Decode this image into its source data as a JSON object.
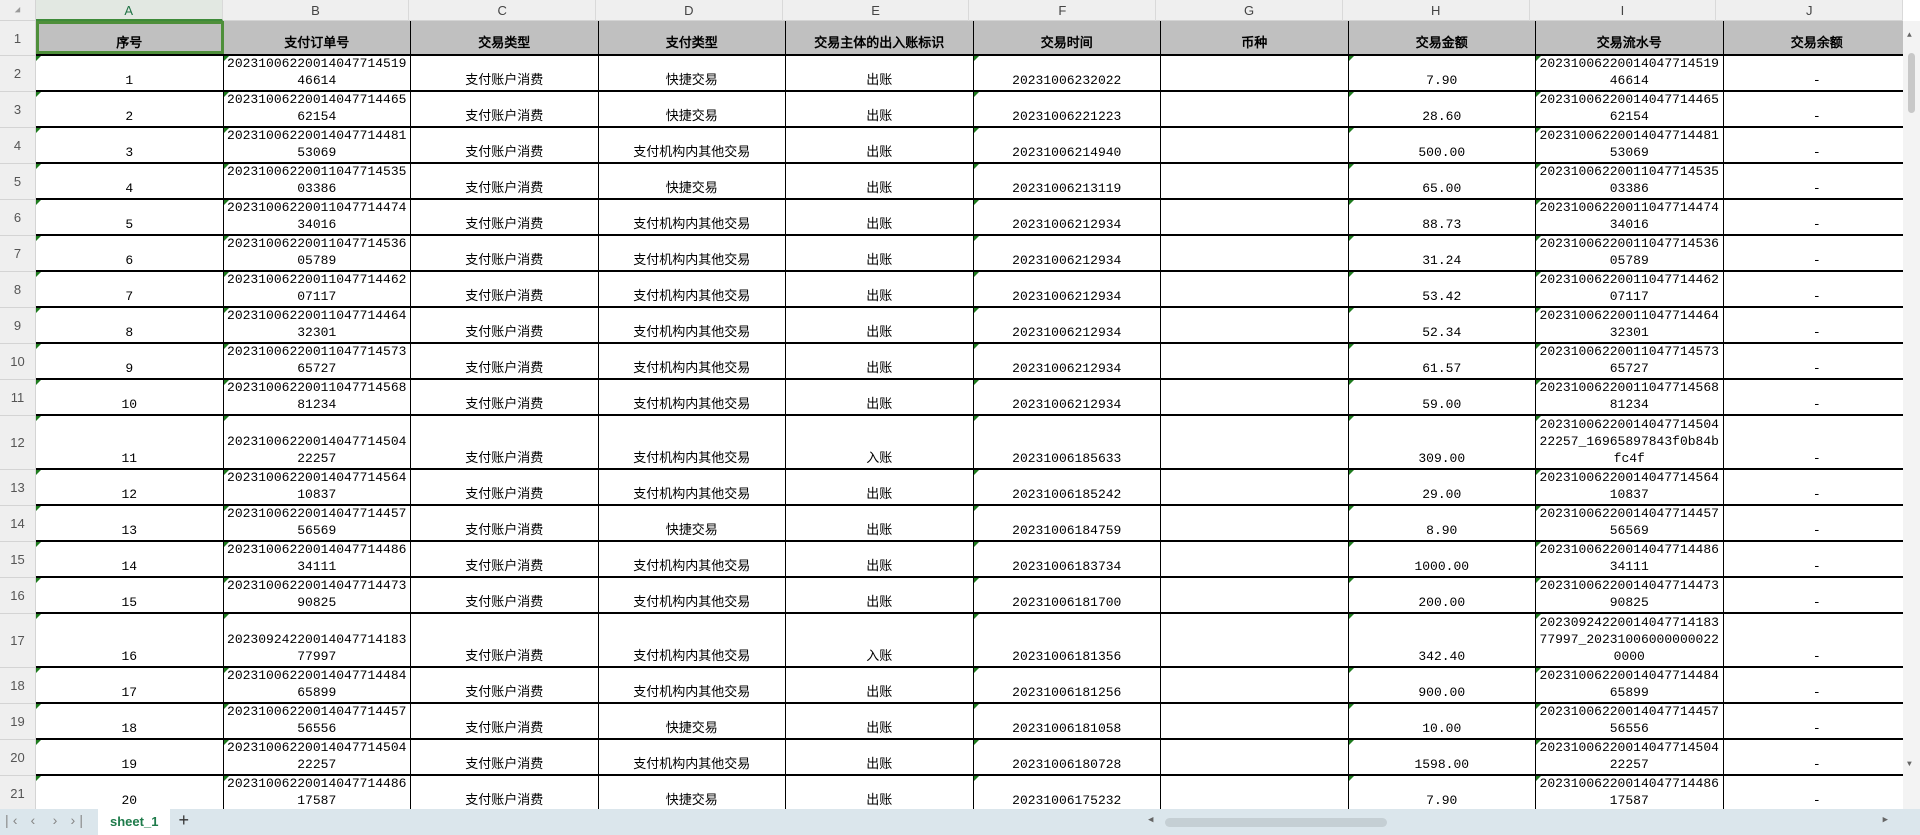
{
  "columns": [
    "A",
    "B",
    "C",
    "D",
    "E",
    "F",
    "G",
    "H",
    "I",
    "J"
  ],
  "headers": [
    "序号",
    "支付订单号",
    "交易类型",
    "支付类型",
    "交易主体的出入账标识",
    "交易时间",
    "币种",
    "交易金额",
    "交易流水号",
    "交易余额"
  ],
  "rows": [
    [
      "1",
      "2023100622001404771451946614",
      "支付账户消费",
      "快捷交易",
      "出账",
      "20231006232022",
      "",
      "7.90",
      "2023100622001404771451946614",
      "-"
    ],
    [
      "2",
      "2023100622001404771446562154",
      "支付账户消费",
      "快捷交易",
      "出账",
      "20231006221223",
      "",
      "28.60",
      "2023100622001404771446562154",
      "-"
    ],
    [
      "3",
      "2023100622001404771448153069",
      "支付账户消费",
      "支付机构内其他交易",
      "出账",
      "20231006214940",
      "",
      "500.00",
      "2023100622001404771448153069",
      "-"
    ],
    [
      "4",
      "2023100622001104771453503386",
      "支付账户消费",
      "快捷交易",
      "出账",
      "20231006213119",
      "",
      "65.00",
      "2023100622001104771453503386",
      "-"
    ],
    [
      "5",
      "2023100622001104771447434016",
      "支付账户消费",
      "支付机构内其他交易",
      "出账",
      "20231006212934",
      "",
      "88.73",
      "2023100622001104771447434016",
      "-"
    ],
    [
      "6",
      "2023100622001104771453605789",
      "支付账户消费",
      "支付机构内其他交易",
      "出账",
      "20231006212934",
      "",
      "31.24",
      "2023100622001104771453605789",
      "-"
    ],
    [
      "7",
      "2023100622001104771446207117",
      "支付账户消费",
      "支付机构内其他交易",
      "出账",
      "20231006212934",
      "",
      "53.42",
      "2023100622001104771446207117",
      "-"
    ],
    [
      "8",
      "2023100622001104771446432301",
      "支付账户消费",
      "支付机构内其他交易",
      "出账",
      "20231006212934",
      "",
      "52.34",
      "2023100622001104771446432301",
      "-"
    ],
    [
      "9",
      "2023100622001104771457365727",
      "支付账户消费",
      "支付机构内其他交易",
      "出账",
      "20231006212934",
      "",
      "61.57",
      "2023100622001104771457365727",
      "-"
    ],
    [
      "10",
      "2023100622001104771456881234",
      "支付账户消费",
      "支付机构内其他交易",
      "出账",
      "20231006212934",
      "",
      "59.00",
      "2023100622001104771456881234",
      "-"
    ],
    [
      "11",
      "2023100622001404771450422257",
      "支付账户消费",
      "支付机构内其他交易",
      "入账",
      "20231006185633",
      "",
      "309.00",
      "2023100622001404771450422257_16965897843f0b84bfc4f",
      "-"
    ],
    [
      "12",
      "2023100622001404771456410837",
      "支付账户消费",
      "支付机构内其他交易",
      "出账",
      "20231006185242",
      "",
      "29.00",
      "2023100622001404771456410837",
      "-"
    ],
    [
      "13",
      "2023100622001404771445756569",
      "支付账户消费",
      "快捷交易",
      "出账",
      "20231006184759",
      "",
      "8.90",
      "2023100622001404771445756569",
      "-"
    ],
    [
      "14",
      "2023100622001404771448634111",
      "支付账户消费",
      "支付机构内其他交易",
      "出账",
      "20231006183734",
      "",
      "1000.00",
      "2023100622001404771448634111",
      "-"
    ],
    [
      "15",
      "2023100622001404771447390825",
      "支付账户消费",
      "支付机构内其他交易",
      "出账",
      "20231006181700",
      "",
      "200.00",
      "2023100622001404771447390825",
      "-"
    ],
    [
      "16",
      "2023092422001404771418377997",
      "支付账户消费",
      "支付机构内其他交易",
      "入账",
      "20231006181356",
      "",
      "342.40",
      "2023092422001404771418377997_202310060000000220000",
      "-"
    ],
    [
      "17",
      "2023100622001404771448465899",
      "支付账户消费",
      "支付机构内其他交易",
      "出账",
      "20231006181256",
      "",
      "900.00",
      "2023100622001404771448465899",
      "-"
    ],
    [
      "18",
      "2023100622001404771445756556",
      "支付账户消费",
      "快捷交易",
      "出账",
      "20231006181058",
      "",
      "10.00",
      "2023100622001404771445756556",
      "-"
    ],
    [
      "19",
      "2023100622001404771450422257",
      "支付账户消费",
      "支付机构内其他交易",
      "出账",
      "20231006180728",
      "",
      "1598.00",
      "2023100622001404771450422257",
      "-"
    ],
    [
      "20",
      "2023100622001404771448617587",
      "支付账户消费",
      "快捷交易",
      "出账",
      "20231006175232",
      "",
      "7.90",
      "2023100622001404771448617587",
      "-"
    ]
  ],
  "sheet_tabs": [
    "sheet_1"
  ],
  "add_sheet_label": "+",
  "colors": {
    "header_fill": "#c0c0c0",
    "selection": "#4e8f3a",
    "tab_text": "#1e7b4a"
  }
}
